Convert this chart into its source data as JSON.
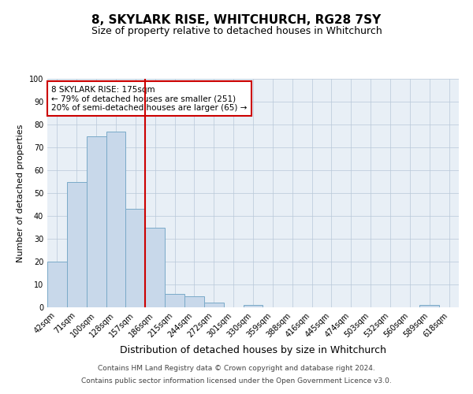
{
  "title": "8, SKYLARK RISE, WHITCHURCH, RG28 7SY",
  "subtitle": "Size of property relative to detached houses in Whitchurch",
  "xlabel": "Distribution of detached houses by size in Whitchurch",
  "ylabel": "Number of detached properties",
  "bin_labels": [
    "42sqm",
    "71sqm",
    "100sqm",
    "128sqm",
    "157sqm",
    "186sqm",
    "215sqm",
    "244sqm",
    "272sqm",
    "301sqm",
    "330sqm",
    "359sqm",
    "388sqm",
    "416sqm",
    "445sqm",
    "474sqm",
    "503sqm",
    "532sqm",
    "560sqm",
    "589sqm",
    "618sqm"
  ],
  "bar_values": [
    20,
    55,
    75,
    77,
    43,
    35,
    6,
    5,
    2,
    0,
    1,
    0,
    0,
    0,
    0,
    0,
    0,
    0,
    0,
    1,
    0
  ],
  "bar_color": "#c8d8ea",
  "bar_edge_color": "#7aaac8",
  "red_line_color": "#cc0000",
  "red_line_x": 4.5,
  "annotation_text": "8 SKYLARK RISE: 175sqm\n← 79% of detached houses are smaller (251)\n20% of semi-detached houses are larger (65) →",
  "annotation_box_color": "#ffffff",
  "annotation_box_edge": "#cc0000",
  "ylim": [
    0,
    100
  ],
  "footnote_line1": "Contains HM Land Registry data © Crown copyright and database right 2024.",
  "footnote_line2": "Contains public sector information licensed under the Open Government Licence v3.0.",
  "bg_color": "#e8eff6",
  "title_fontsize": 11,
  "subtitle_fontsize": 9,
  "xlabel_fontsize": 9,
  "ylabel_fontsize": 8,
  "tick_fontsize": 7,
  "annot_fontsize": 7.5,
  "footnote_fontsize": 6.5
}
